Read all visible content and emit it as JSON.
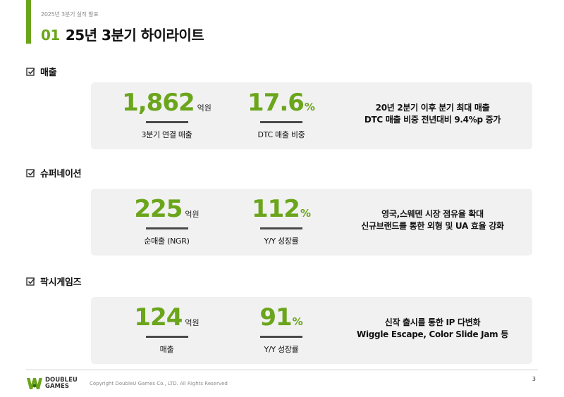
{
  "header": {
    "deck_label": "2025년 3분기 실적 발표",
    "title_num": "01",
    "title_text": "25년 3분기 하이라이트"
  },
  "sections": [
    {
      "title": "매출",
      "metric1": {
        "value": "1,862",
        "unit": "억원",
        "label": "3분기 연결 매출"
      },
      "metric2": {
        "value": "17.6",
        "unit": "%",
        "label": "DTC 매출 비중"
      },
      "desc": [
        "20년 2분기 이후 분기 최대 매출",
        "DTC 매출 비중 전년대비 9.4%p 증가"
      ]
    },
    {
      "title": "슈퍼네이션",
      "metric1": {
        "value": "225",
        "unit": "억원",
        "label": "순매출 (NGR)"
      },
      "metric2": {
        "value": "112",
        "unit": "%",
        "label": "Y/Y 성장률"
      },
      "desc": [
        "영국,스웨덴 시장 점유율 확대",
        "신규브랜드를 통한 외형 및 UA 효율 강화"
      ]
    },
    {
      "title": "팍시게임즈",
      "metric1": {
        "value": "124",
        "unit": "억원",
        "label": "매출"
      },
      "metric2": {
        "value": "91",
        "unit": "%",
        "label": "Y/Y 성장률"
      },
      "desc": [
        "신작 출시를 통한 IP 다변화",
        "Wiggle Escape, Color Slide Jam 등"
      ]
    }
  ],
  "footer": {
    "logo_line1": "DOUBLEU",
    "logo_line2": "GAMES",
    "copyright": "Copyright DoubleU Games Co., LTD. All Rights Reserved",
    "page_number": "3"
  },
  "colors": {
    "accent": "#6aa51b",
    "card_bg": "#f1f1f1"
  },
  "icons": {
    "section_icon": "checkbox-checked-icon",
    "logo_icon": "doubleu-logo-icon"
  }
}
